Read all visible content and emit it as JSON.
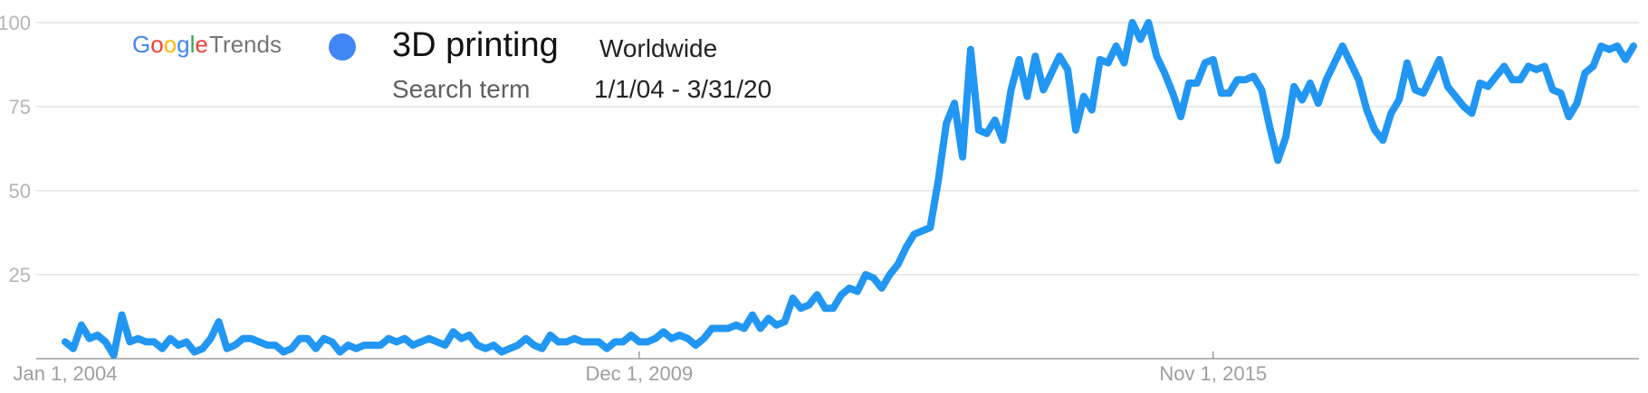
{
  "brand": {
    "google": [
      "G",
      "o",
      "o",
      "g",
      "l",
      "e"
    ],
    "google_colors": [
      "#4285F4",
      "#EA4335",
      "#FBBC05",
      "#4285F4",
      "#34A853",
      "#EA4335"
    ],
    "trends": "Trends"
  },
  "legend": {
    "term": "3D printing",
    "term_type": "Search term",
    "region": "Worldwide",
    "range": "1/1/04 - 3/31/20",
    "marker_color": "#4285F4"
  },
  "chart_data": {
    "type": "line",
    "title": "",
    "xlabel": "",
    "ylabel": "",
    "ylim": [
      0,
      100
    ],
    "y_ticks": [
      25,
      50,
      75,
      100
    ],
    "y_tick_labels": [
      "25",
      "50",
      "75",
      "100"
    ],
    "x_tick_labels": [
      "Jan 1, 2004",
      "Dec 1, 2009",
      "Nov 1, 2015"
    ],
    "x_tick_index": [
      0,
      71,
      142
    ],
    "x_start": "Jan 2004",
    "x_end": "Mar 2020",
    "x_interval": "monthly",
    "line_color": "#2196F3",
    "grid": true,
    "series": [
      {
        "name": "3D printing",
        "values": [
          5,
          3,
          10,
          6,
          7,
          5,
          1,
          13,
          5,
          6,
          5,
          5,
          3,
          6,
          4,
          5,
          2,
          3,
          6,
          11,
          3,
          4,
          6,
          6,
          5,
          4,
          4,
          2,
          3,
          6,
          6,
          3,
          6,
          5,
          2,
          4,
          3,
          4,
          4,
          4,
          6,
          5,
          6,
          4,
          5,
          6,
          5,
          4,
          8,
          6,
          7,
          4,
          3,
          4,
          2,
          3,
          4,
          6,
          4,
          3,
          7,
          5,
          5,
          6,
          5,
          5,
          5,
          3,
          5,
          5,
          7,
          5,
          5,
          6,
          8,
          6,
          7,
          6,
          4,
          6,
          9,
          9,
          9,
          10,
          9,
          13,
          9,
          12,
          10,
          11,
          18,
          15,
          16,
          19,
          15,
          15,
          19,
          21,
          20,
          25,
          24,
          21,
          25,
          28,
          33,
          37,
          38,
          39,
          53,
          70,
          76,
          60,
          92,
          68,
          67,
          71,
          65,
          80,
          89,
          78,
          90,
          80,
          85,
          90,
          86,
          68,
          78,
          74,
          89,
          88,
          93,
          88,
          100,
          95,
          100,
          90,
          85,
          79,
          72,
          82,
          82,
          88,
          89,
          79,
          79,
          83,
          83,
          84,
          80,
          69,
          59,
          66,
          81,
          77,
          82,
          76,
          83,
          88,
          93,
          88,
          83,
          74,
          68,
          65,
          73,
          77,
          88,
          80,
          79,
          84,
          89,
          81,
          78,
          75,
          73,
          82,
          81,
          84,
          87,
          83,
          83,
          87,
          86,
          87,
          80,
          79,
          72,
          76,
          85,
          87,
          93,
          92,
          93,
          89,
          93
        ]
      }
    ]
  }
}
